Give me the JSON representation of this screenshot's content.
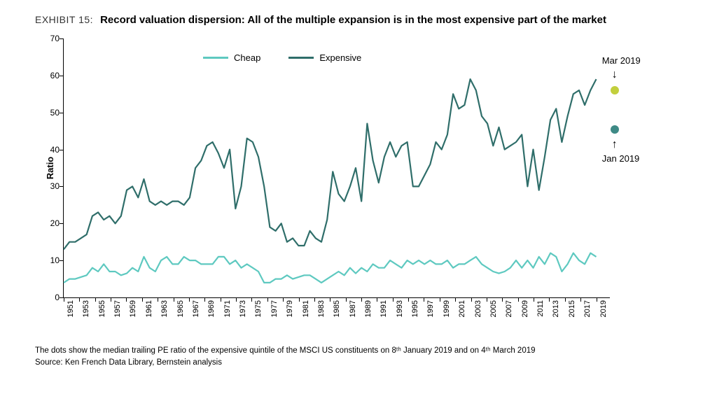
{
  "exhibit_label": "EXHIBIT 15:",
  "title": "Record valuation dispersion: All of the multiple expansion is in the most expensive part of the market",
  "chart": {
    "type": "line",
    "y_axis_title": "Ratio",
    "ylim": [
      0,
      70
    ],
    "ytick_step": 10,
    "x_years_start": 1951,
    "x_years_end": 2019,
    "x_tick_step": 2,
    "background_color": "#ffffff",
    "axis_color": "#000000",
    "line_width": 2.2,
    "series": {
      "cheap": {
        "label": "Cheap",
        "color": "#5ec9c0",
        "values": [
          4,
          5,
          5,
          5.5,
          6,
          8,
          7,
          9,
          7,
          7,
          6,
          6.5,
          8,
          7,
          11,
          8,
          7,
          10,
          11,
          9,
          9,
          11,
          10,
          10,
          9,
          9,
          9,
          11,
          11,
          9,
          10,
          8,
          9,
          8,
          7,
          4,
          4,
          5,
          5,
          6,
          5,
          5.5,
          6,
          6,
          5,
          4,
          5,
          6,
          7,
          6,
          8,
          6.5,
          8,
          7,
          9,
          8,
          8,
          10,
          9,
          8,
          10,
          9,
          10,
          9,
          10,
          9,
          9,
          10,
          8,
          9,
          9,
          10,
          11,
          9,
          8,
          7,
          6.5,
          7,
          8,
          10,
          8,
          10,
          8,
          11,
          9,
          12,
          11,
          7,
          9,
          12,
          10,
          9,
          12,
          11
        ]
      },
      "expensive": {
        "label": "Expensive",
        "color": "#2f6e6a",
        "values": [
          13,
          15,
          15,
          16,
          17,
          22,
          23,
          21,
          22,
          20,
          22,
          29,
          30,
          27,
          32,
          26,
          25,
          26,
          25,
          26,
          26,
          25,
          27,
          35,
          37,
          41,
          42,
          39,
          35,
          40,
          24,
          30,
          43,
          42,
          38,
          30,
          19,
          18,
          20,
          15,
          16,
          14,
          14,
          18,
          16,
          15,
          21,
          34,
          28,
          26,
          30,
          35,
          26,
          47,
          37,
          31,
          38,
          42,
          38,
          41,
          42,
          30,
          30,
          33,
          36,
          42,
          40,
          44,
          55,
          51,
          52,
          59,
          56,
          49,
          47,
          41,
          46,
          40,
          41,
          42,
          44,
          30,
          40,
          29,
          38,
          48,
          51,
          42,
          49,
          55,
          56,
          52,
          56,
          59
        ]
      }
    },
    "legend_position": "top-center",
    "annotations": {
      "mar2019": {
        "label": "Mar 2019",
        "year": 2019.2,
        "value": 56,
        "color": "#c2cf3d"
      },
      "jan2019": {
        "label": "Jan 2019",
        "year": 2019.2,
        "value": 45.5,
        "color": "#3e8a86"
      }
    }
  },
  "footnote_line1": "The dots show the median trailing PE ratio of the expensive quintile of the MSCI US constituents on 8ᵗʰ January 2019 and on 4ᵗʰ March 2019",
  "footnote_line2": "Source: Ken French Data Library, Bernstein analysis"
}
